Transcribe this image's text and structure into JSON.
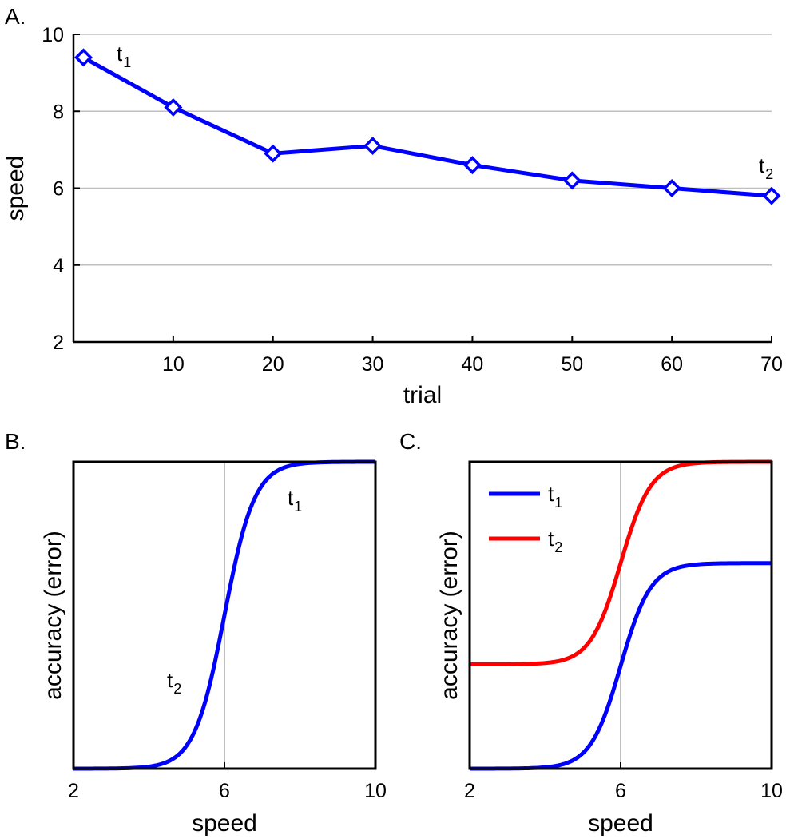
{
  "chart_data": [
    {
      "type": "line",
      "panel_label": "A.",
      "xlabel": "trial",
      "ylabel": "speed",
      "xlim": [
        0,
        70
      ],
      "ylim": [
        2,
        10
      ],
      "xticks": [
        10,
        20,
        30,
        40,
        50,
        60,
        70
      ],
      "yticks": [
        2,
        4,
        6,
        8,
        10
      ],
      "grid": "horizontal",
      "series": [
        {
          "name": "speed",
          "color": "#0000ff",
          "marker": "diamond",
          "x": [
            1,
            10,
            20,
            30,
            40,
            50,
            60,
            70
          ],
          "y": [
            9.4,
            8.1,
            6.9,
            7.1,
            6.6,
            6.2,
            6.0,
            5.8
          ]
        }
      ],
      "annotations": [
        {
          "text": "t",
          "subscript": "1",
          "near_x": 1
        },
        {
          "text": "t",
          "subscript": "2",
          "near_x": 70
        }
      ]
    },
    {
      "type": "line",
      "panel_label": "B.",
      "xlabel": "speed",
      "ylabel": "accuracy (error)",
      "xlim": [
        2,
        10
      ],
      "ylim": [
        0,
        1
      ],
      "xticks": [
        2,
        6,
        10
      ],
      "reference_line_x": 6,
      "series": [
        {
          "name": "accuracy",
          "color": "#0000ff",
          "function": "sigmoid",
          "center": 6,
          "slope": 2.5,
          "low": 0,
          "high": 1
        }
      ],
      "annotations": [
        {
          "text": "t",
          "subscript": "1",
          "position": "upper curve"
        },
        {
          "text": "t",
          "subscript": "2",
          "position": "lower curve"
        }
      ]
    },
    {
      "type": "line",
      "panel_label": "C.",
      "xlabel": "speed",
      "ylabel": "accuracy (error)",
      "xlim": [
        2,
        10
      ],
      "ylim": [
        0,
        1
      ],
      "xticks": [
        2,
        6,
        10
      ],
      "reference_line_x": 6,
      "legend": "top-left",
      "series": [
        {
          "name": "t",
          "subscript": "1",
          "color": "#0000ff",
          "function": "sigmoid",
          "center": 6,
          "slope": 2.5,
          "low": 0,
          "high": 0.67
        },
        {
          "name": "t",
          "subscript": "2",
          "color": "#ff0000",
          "function": "sigmoid",
          "center": 6,
          "slope": 2.5,
          "low": 0.34,
          "high": 1
        }
      ]
    }
  ]
}
